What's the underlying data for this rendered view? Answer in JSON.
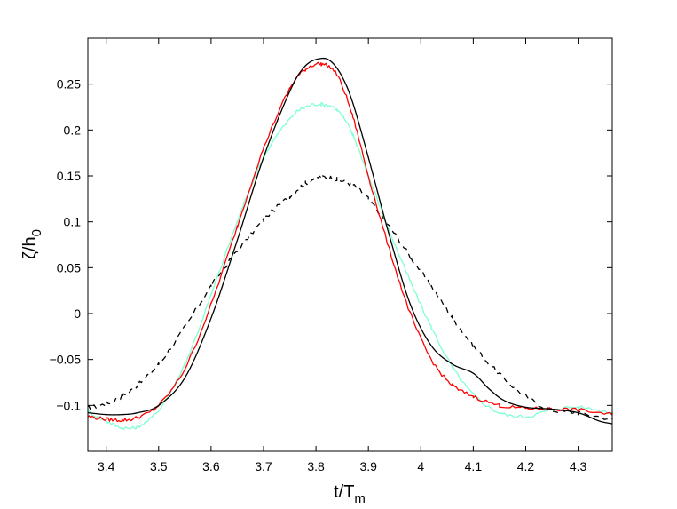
{
  "chart_data": {
    "type": "line",
    "xlabel": {
      "main": "t/T",
      "sub": "m"
    },
    "ylabel": {
      "main": "ζ/h",
      "sub": "0"
    },
    "xlim": [
      3.365,
      4.365
    ],
    "ylim": [
      -0.15,
      0.3
    ],
    "x_ticks": [
      3.4,
      3.5,
      3.6,
      3.7,
      3.8,
      3.9,
      4.0,
      4.1,
      4.2,
      4.3
    ],
    "x_tick_labels": [
      "3.4",
      "3.5",
      "3.6",
      "3.7",
      "3.8",
      "3.9",
      "4",
      "4.1",
      "4.2",
      "4.3"
    ],
    "y_ticks": [
      -0.1,
      -0.05,
      0,
      0.05,
      0.1,
      0.15,
      0.2,
      0.25
    ],
    "y_tick_labels": [
      "−0.1",
      "−0.05",
      "0",
      "0.05",
      "0.1",
      "0.15",
      "0.2",
      "0.25"
    ],
    "grid": false,
    "series": [
      {
        "color": "#000000",
        "style": "dashed",
        "noise": 0.0025,
        "x": [
          3.365,
          3.4,
          3.43,
          3.46,
          3.5,
          3.55,
          3.6,
          3.65,
          3.7,
          3.75,
          3.78,
          3.81,
          3.84,
          3.87,
          3.9,
          3.94,
          3.98,
          4.02,
          4.06,
          4.1,
          4.15,
          4.2,
          4.25,
          4.3,
          4.365
        ],
        "y": [
          -0.103,
          -0.098,
          -0.09,
          -0.078,
          -0.055,
          -0.015,
          0.03,
          0.068,
          0.102,
          0.128,
          0.142,
          0.149,
          0.146,
          0.14,
          0.125,
          0.095,
          0.062,
          0.03,
          -0.004,
          -0.035,
          -0.066,
          -0.09,
          -0.105,
          -0.108,
          -0.115
        ]
      },
      {
        "color": "#7fffd4",
        "style": "solid",
        "noise": 0.002,
        "x": [
          3.365,
          3.4,
          3.43,
          3.46,
          3.5,
          3.55,
          3.6,
          3.65,
          3.7,
          3.75,
          3.78,
          3.81,
          3.84,
          3.87,
          3.9,
          3.94,
          3.98,
          4.02,
          4.06,
          4.1,
          4.15,
          4.2,
          4.25,
          4.3,
          4.365
        ],
        "y": [
          -0.107,
          -0.117,
          -0.124,
          -0.123,
          -0.105,
          -0.055,
          0.02,
          0.1,
          0.17,
          0.212,
          0.225,
          0.228,
          0.222,
          0.195,
          0.15,
          0.09,
          0.035,
          -0.015,
          -0.058,
          -0.088,
          -0.108,
          -0.112,
          -0.105,
          -0.102,
          -0.108
        ]
      },
      {
        "color": "#ff0000",
        "style": "solid",
        "noise": 0.002,
        "x": [
          3.365,
          3.4,
          3.43,
          3.46,
          3.5,
          3.55,
          3.6,
          3.65,
          3.7,
          3.75,
          3.78,
          3.81,
          3.84,
          3.87,
          3.9,
          3.94,
          3.98,
          4.02,
          4.06,
          4.1,
          4.15,
          4.2,
          4.25,
          4.3,
          4.365
        ],
        "y": [
          -0.112,
          -0.115,
          -0.116,
          -0.113,
          -0.1,
          -0.06,
          0.01,
          0.095,
          0.18,
          0.245,
          0.266,
          0.272,
          0.26,
          0.215,
          0.15,
          0.07,
          0.0,
          -0.05,
          -0.078,
          -0.09,
          -0.1,
          -0.103,
          -0.104,
          -0.105,
          -0.11
        ]
      },
      {
        "color": "#000000",
        "style": "solid",
        "noise": 0,
        "x": [
          3.365,
          3.4,
          3.43,
          3.46,
          3.5,
          3.55,
          3.6,
          3.65,
          3.7,
          3.75,
          3.78,
          3.81,
          3.83,
          3.85,
          3.87,
          3.9,
          3.94,
          3.98,
          4.02,
          4.06,
          4.1,
          4.13,
          4.16,
          4.2,
          4.25,
          4.3,
          4.34,
          4.365
        ],
        "y": [
          -0.108,
          -0.11,
          -0.11,
          -0.108,
          -0.1,
          -0.07,
          -0.005,
          0.08,
          0.17,
          0.242,
          0.27,
          0.278,
          0.274,
          0.258,
          0.23,
          0.17,
          0.085,
          0.01,
          -0.035,
          -0.055,
          -0.065,
          -0.082,
          -0.095,
          -0.102,
          -0.104,
          -0.108,
          -0.117,
          -0.12
        ]
      }
    ]
  }
}
